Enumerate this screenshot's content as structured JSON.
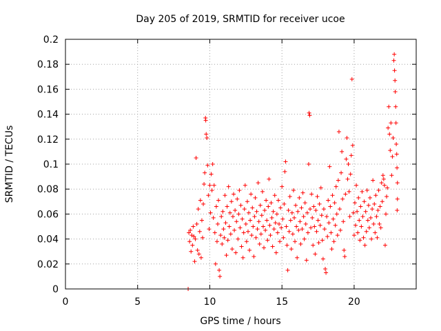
{
  "chart_data": {
    "type": "scatter",
    "title": "Day 205 of 2019, SRMTID for receiver ucoe",
    "xlabel": "GPS time / hours",
    "ylabel": "SRMTID / TECUs",
    "xlim": [
      0,
      24.3
    ],
    "ylim": [
      0,
      0.2
    ],
    "xticks": [
      {
        "value": 0,
        "label": "0"
      },
      {
        "value": 5,
        "label": "5"
      },
      {
        "value": 10,
        "label": "10"
      },
      {
        "value": 15,
        "label": "15"
      },
      {
        "value": 20,
        "label": "20"
      }
    ],
    "yticks": [
      {
        "value": 0,
        "label": "0"
      },
      {
        "value": 0.02,
        "label": "0.02"
      },
      {
        "value": 0.04,
        "label": "0.04"
      },
      {
        "value": 0.06,
        "label": "0.06"
      },
      {
        "value": 0.08,
        "label": "0.08"
      },
      {
        "value": 0.1,
        "label": "0.1"
      },
      {
        "value": 0.12,
        "label": "0.12"
      },
      {
        "value": 0.14,
        "label": "0.14"
      },
      {
        "value": 0.16,
        "label": "0.16"
      },
      {
        "value": 0.18,
        "label": "0.18"
      },
      {
        "value": 0.2,
        "label": "0.2"
      }
    ],
    "grid": true,
    "marker": "+",
    "series": [
      {
        "name": "SRMTID",
        "color": "#ff0000",
        "points": [
          [
            8.5,
            0.0
          ],
          [
            8.55,
            0.045
          ],
          [
            8.6,
            0.038
          ],
          [
            8.65,
            0.047
          ],
          [
            8.7,
            0.03
          ],
          [
            8.75,
            0.043
          ],
          [
            8.8,
            0.035
          ],
          [
            8.85,
            0.05
          ],
          [
            8.9,
            0.042
          ],
          [
            8.95,
            0.022
          ],
          [
            9.0,
            0.04
          ],
          [
            9.05,
            0.105
          ],
          [
            9.1,
            0.052
          ],
          [
            9.15,
            0.031
          ],
          [
            9.2,
            0.064
          ],
          [
            9.25,
            0.028
          ],
          [
            9.3,
            0.046
          ],
          [
            9.35,
            0.071
          ],
          [
            9.4,
            0.025
          ],
          [
            9.45,
            0.055
          ],
          [
            9.5,
            0.041
          ],
          [
            9.55,
            0.068
          ],
          [
            9.6,
            0.084
          ],
          [
            9.65,
            0.093
          ],
          [
            9.7,
            0.137
          ],
          [
            9.72,
            0.135
          ],
          [
            9.75,
            0.124
          ],
          [
            9.8,
            0.121
          ],
          [
            9.85,
            0.099
          ],
          [
            9.9,
            0.075
          ],
          [
            9.95,
            0.048
          ],
          [
            10.0,
            0.083
          ],
          [
            10.05,
            0.061
          ],
          [
            10.1,
            0.092
          ],
          [
            10.15,
            0.079
          ],
          [
            10.2,
            0.1
          ],
          [
            10.25,
            0.057
          ],
          [
            10.3,
            0.083
          ],
          [
            10.35,
            0.045
          ],
          [
            10.4,
            0.02
          ],
          [
            10.45,
            0.066
          ],
          [
            10.5,
            0.038
          ],
          [
            10.55,
            0.052
          ],
          [
            10.6,
            0.071
          ],
          [
            10.65,
            0.015
          ],
          [
            10.7,
            0.01
          ],
          [
            10.75,
            0.043
          ],
          [
            10.8,
            0.058
          ],
          [
            10.85,
            0.036
          ],
          [
            10.9,
            0.062
          ],
          [
            10.95,
            0.048
          ],
          [
            11.0,
            0.041
          ],
          [
            11.05,
            0.075
          ],
          [
            11.1,
            0.053
          ],
          [
            11.15,
            0.027
          ],
          [
            11.2,
            0.066
          ],
          [
            11.25,
            0.039
          ],
          [
            11.3,
            0.082
          ],
          [
            11.35,
            0.05
          ],
          [
            11.4,
            0.061
          ],
          [
            11.45,
            0.044
          ],
          [
            11.5,
            0.07
          ],
          [
            11.55,
            0.032
          ],
          [
            11.6,
            0.058
          ],
          [
            11.65,
            0.076
          ],
          [
            11.7,
            0.047
          ],
          [
            11.75,
            0.063
          ],
          [
            11.8,
            0.029
          ],
          [
            11.85,
            0.054
          ],
          [
            11.9,
            0.072
          ],
          [
            11.95,
            0.04
          ],
          [
            12.0,
            0.06
          ],
          [
            12.05,
            0.079
          ],
          [
            12.1,
            0.049
          ],
          [
            12.15,
            0.067
          ],
          [
            12.2,
            0.034
          ],
          [
            12.25,
            0.056
          ],
          [
            12.3,
            0.025
          ],
          [
            12.35,
            0.045
          ],
          [
            12.4,
            0.064
          ],
          [
            12.45,
            0.083
          ],
          [
            12.5,
            0.052
          ],
          [
            12.55,
            0.038
          ],
          [
            12.6,
            0.07
          ],
          [
            12.65,
            0.046
          ],
          [
            12.7,
            0.061
          ],
          [
            12.75,
            0.031
          ],
          [
            12.8,
            0.055
          ],
          [
            12.85,
            0.076
          ],
          [
            12.9,
            0.043
          ],
          [
            12.95,
            0.065
          ],
          [
            13.0,
            0.05
          ],
          [
            13.05,
            0.026
          ],
          [
            13.1,
            0.058
          ],
          [
            13.15,
            0.073
          ],
          [
            13.2,
            0.041
          ],
          [
            13.25,
            0.062
          ],
          [
            13.3,
            0.048
          ],
          [
            13.35,
            0.085
          ],
          [
            13.4,
            0.054
          ],
          [
            13.45,
            0.036
          ],
          [
            13.5,
            0.067
          ],
          [
            13.55,
            0.044
          ],
          [
            13.6,
            0.059
          ],
          [
            13.65,
            0.078
          ],
          [
            13.7,
            0.05
          ],
          [
            13.75,
            0.033
          ],
          [
            13.8,
            0.063
          ],
          [
            13.85,
            0.047
          ],
          [
            13.9,
            0.071
          ],
          [
            13.95,
            0.055
          ],
          [
            14.0,
            0.039
          ],
          [
            14.05,
            0.066
          ],
          [
            14.1,
            0.088
          ],
          [
            14.15,
            0.051
          ],
          [
            14.2,
            0.043
          ],
          [
            14.25,
            0.069
          ],
          [
            14.3,
            0.057
          ],
          [
            14.35,
            0.034
          ],
          [
            14.4,
            0.062
          ],
          [
            14.45,
            0.048
          ],
          [
            14.5,
            0.075
          ],
          [
            14.55,
            0.053
          ],
          [
            14.6,
            0.029
          ],
          [
            14.65,
            0.06
          ],
          [
            14.7,
            0.045
          ],
          [
            14.75,
            0.071
          ],
          [
            14.8,
            0.052
          ],
          [
            14.85,
            0.038
          ],
          [
            14.9,
            0.065
          ],
          [
            14.95,
            0.049
          ],
          [
            15.0,
            0.082
          ],
          [
            15.05,
            0.056
          ],
          [
            15.1,
            0.041
          ],
          [
            15.15,
            0.068
          ],
          [
            15.2,
            0.094
          ],
          [
            15.25,
            0.102
          ],
          [
            15.3,
            0.05
          ],
          [
            15.35,
            0.035
          ],
          [
            15.4,
            0.015
          ],
          [
            15.45,
            0.063
          ],
          [
            15.5,
            0.046
          ],
          [
            15.55,
            0.074
          ],
          [
            15.6,
            0.055
          ],
          [
            15.65,
            0.032
          ],
          [
            15.7,
            0.061
          ],
          [
            15.75,
            0.044
          ],
          [
            15.8,
            0.079
          ],
          [
            15.85,
            0.057
          ],
          [
            15.9,
            0.038
          ],
          [
            15.95,
            0.067
          ],
          [
            16.0,
            0.05
          ],
          [
            16.05,
            0.025
          ],
          [
            16.1,
            0.062
          ],
          [
            16.15,
            0.047
          ],
          [
            16.2,
            0.073
          ],
          [
            16.25,
            0.054
          ],
          [
            16.3,
            0.036
          ],
          [
            16.35,
            0.065
          ],
          [
            16.4,
            0.048
          ],
          [
            16.45,
            0.077
          ],
          [
            16.5,
            0.058
          ],
          [
            16.55,
            0.04
          ],
          [
            16.6,
            0.069
          ],
          [
            16.65,
            0.052
          ],
          [
            16.7,
            0.023
          ],
          [
            16.75,
            0.061
          ],
          [
            16.8,
            0.045
          ],
          [
            16.85,
            0.1
          ],
          [
            16.88,
            0.141
          ],
          [
            16.92,
            0.139
          ],
          [
            16.95,
            0.064
          ],
          [
            17.0,
            0.049
          ],
          [
            17.05,
            0.076
          ],
          [
            17.1,
            0.057
          ],
          [
            17.15,
            0.035
          ],
          [
            17.2,
            0.066
          ],
          [
            17.25,
            0.05
          ],
          [
            17.3,
            0.028
          ],
          [
            17.35,
            0.063
          ],
          [
            17.4,
            0.046
          ],
          [
            17.45,
            0.074
          ],
          [
            17.5,
            0.055
          ],
          [
            17.55,
            0.037
          ],
          [
            17.6,
            0.068
          ],
          [
            17.65,
            0.051
          ],
          [
            17.7,
            0.081
          ],
          [
            17.75,
            0.059
          ],
          [
            17.8,
            0.039
          ],
          [
            17.85,
            0.024
          ],
          [
            17.9,
            0.064
          ],
          [
            17.95,
            0.048
          ],
          [
            18.0,
            0.016
          ],
          [
            18.05,
            0.013
          ],
          [
            18.1,
            0.058
          ],
          [
            18.15,
            0.042
          ],
          [
            18.2,
            0.071
          ],
          [
            18.25,
            0.053
          ],
          [
            18.3,
            0.098
          ],
          [
            18.35,
            0.066
          ],
          [
            18.4,
            0.045
          ],
          [
            18.45,
            0.032
          ],
          [
            18.5,
            0.075
          ],
          [
            18.55,
            0.056
          ],
          [
            18.6,
            0.038
          ],
          [
            18.65,
            0.069
          ],
          [
            18.7,
            0.051
          ],
          [
            18.75,
            0.082
          ],
          [
            18.8,
            0.06
          ],
          [
            18.85,
            0.043
          ],
          [
            18.9,
            0.087
          ],
          [
            18.95,
            0.126
          ],
          [
            19.0,
            0.064
          ],
          [
            19.05,
            0.047
          ],
          [
            19.1,
            0.093
          ],
          [
            19.15,
            0.11
          ],
          [
            19.2,
            0.072
          ],
          [
            19.25,
            0.054
          ],
          [
            19.3,
            0.031
          ],
          [
            19.35,
            0.026
          ],
          [
            19.4,
            0.076
          ],
          [
            19.45,
            0.104
          ],
          [
            19.5,
            0.121
          ],
          [
            19.55,
            0.088
          ],
          [
            19.6,
            0.1
          ],
          [
            19.65,
            0.078
          ],
          [
            19.7,
            0.058
          ],
          [
            19.75,
            0.092
          ],
          [
            19.8,
            0.107
          ],
          [
            19.85,
            0.168
          ],
          [
            19.9,
            0.115
          ],
          [
            19.95,
            0.061
          ],
          [
            20.0,
            0.043
          ],
          [
            20.05,
            0.069
          ],
          [
            20.1,
            0.051
          ],
          [
            20.15,
            0.083
          ],
          [
            20.2,
            0.062
          ],
          [
            20.25,
            0.045
          ],
          [
            20.3,
            0.073
          ],
          [
            20.35,
            0.055
          ],
          [
            20.4,
            0.039
          ],
          [
            20.45,
            0.066
          ],
          [
            20.5,
            0.05
          ],
          [
            20.55,
            0.078
          ],
          [
            20.6,
            0.058
          ],
          [
            20.65,
            0.041
          ],
          [
            20.7,
            0.07
          ],
          [
            20.75,
            0.035
          ],
          [
            20.8,
            0.062
          ],
          [
            20.85,
            0.046
          ],
          [
            20.9,
            0.079
          ],
          [
            20.95,
            0.055
          ],
          [
            21.0,
            0.067
          ],
          [
            21.05,
            0.049
          ],
          [
            21.1,
            0.073
          ],
          [
            21.15,
            0.057
          ],
          [
            21.2,
            0.04
          ],
          [
            21.25,
            0.064
          ],
          [
            21.3,
            0.087
          ],
          [
            21.35,
            0.052
          ],
          [
            21.4,
            0.068
          ],
          [
            21.45,
            0.045
          ],
          [
            21.5,
            0.075
          ],
          [
            21.55,
            0.058
          ],
          [
            21.6,
            0.041
          ],
          [
            21.65,
            0.063
          ],
          [
            21.7,
            0.079
          ],
          [
            21.75,
            0.052
          ],
          [
            21.8,
            0.066
          ],
          [
            21.85,
            0.049
          ],
          [
            21.9,
            0.085
          ],
          [
            21.95,
            0.07
          ],
          [
            22.0,
            0.091
          ],
          [
            22.05,
            0.088
          ],
          [
            22.1,
            0.083
          ],
          [
            22.15,
            0.035
          ],
          [
            22.2,
            0.06
          ],
          [
            22.25,
            0.074
          ],
          [
            22.3,
            0.081
          ],
          [
            22.35,
            0.129
          ],
          [
            22.4,
            0.146
          ],
          [
            22.45,
            0.124
          ],
          [
            22.5,
            0.111
          ],
          [
            22.55,
            0.133
          ],
          [
            22.6,
            0.091
          ],
          [
            22.65,
            0.106
          ],
          [
            22.7,
            0.121
          ],
          [
            22.75,
            0.183
          ],
          [
            22.78,
            0.188
          ],
          [
            22.8,
            0.175
          ],
          [
            22.83,
            0.167
          ],
          [
            22.85,
            0.158
          ],
          [
            22.88,
            0.146
          ],
          [
            22.9,
            0.133
          ],
          [
            22.92,
            0.116
          ],
          [
            22.95,
            0.108
          ],
          [
            22.97,
            0.097
          ],
          [
            23.0,
            0.085
          ],
          [
            23.0,
            0.072
          ],
          [
            22.98,
            0.063
          ]
        ]
      }
    ]
  }
}
